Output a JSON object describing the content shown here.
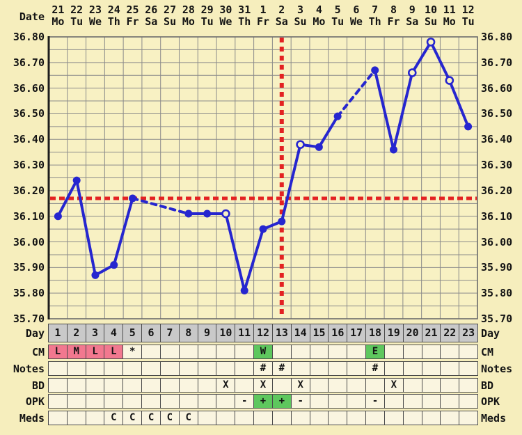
{
  "labels": {
    "date": "Date",
    "day": "Day",
    "cm": "CM",
    "notes": "Notes",
    "bd": "BD",
    "opk": "OPK",
    "meds": "Meds"
  },
  "colors": {
    "background": "#f6eebd",
    "plot_bg": "#f8f1c3",
    "cell_bg": "#faf5e0",
    "day_row_bg": "#c9c9c9",
    "grid": "#8a8a8a",
    "frame": "#6b6b6b",
    "axis": "#1d1d1d",
    "line_blue": "#2626cf",
    "red": "#e32222",
    "pink": "#f2788f",
    "green": "#5ec75e",
    "text": "#141414"
  },
  "chart_data": {
    "type": "line",
    "ylim": [
      35.7,
      36.8
    ],
    "grid_step": 0.05,
    "label_step": 0.1,
    "ytick_labels": [
      "36.80",
      "36.70",
      "36.60",
      "36.50",
      "36.40",
      "36.30",
      "36.20",
      "36.10",
      "36.00",
      "35.90",
      "35.80",
      "35.70"
    ],
    "dates": [
      "21",
      "22",
      "23",
      "24",
      "25",
      "26",
      "27",
      "28",
      "29",
      "30",
      "31",
      "1",
      "2",
      "3",
      "4",
      "5",
      "6",
      "7",
      "8",
      "9",
      "10",
      "11",
      "12"
    ],
    "weekdays": [
      "Mo",
      "Tu",
      "We",
      "Th",
      "Fr",
      "Sa",
      "Su",
      "Mo",
      "Tu",
      "We",
      "Th",
      "Fr",
      "Sa",
      "Su",
      "Mo",
      "Tu",
      "We",
      "Th",
      "Fr",
      "Sa",
      "Su",
      "Mo",
      "Tu"
    ],
    "day_numbers": [
      "1",
      "2",
      "3",
      "4",
      "5",
      "6",
      "7",
      "8",
      "9",
      "10",
      "11",
      "12",
      "13",
      "14",
      "15",
      "16",
      "17",
      "18",
      "19",
      "20",
      "21",
      "22",
      "23"
    ],
    "temps": [
      36.1,
      36.24,
      35.87,
      35.91,
      36.17,
      null,
      null,
      36.11,
      36.11,
      36.11,
      35.81,
      36.05,
      36.08,
      36.38,
      36.37,
      36.49,
      null,
      36.67,
      36.36,
      36.66,
      36.78,
      36.63,
      36.45
    ],
    "open_marker_days": [
      10,
      14,
      20,
      21,
      22
    ],
    "missing_days": [
      6,
      7,
      17
    ],
    "coverline_temp": 36.17,
    "ovulation_day": 13,
    "legend": "none",
    "grid": "on"
  },
  "table": {
    "cm": {
      "1": {
        "t": "L",
        "bg": "pink"
      },
      "2": {
        "t": "M",
        "bg": "pink"
      },
      "3": {
        "t": "L",
        "bg": "pink"
      },
      "4": {
        "t": "L",
        "bg": "pink"
      },
      "5": {
        "t": "*"
      },
      "12": {
        "t": "W",
        "bg": "green"
      },
      "18": {
        "t": "E",
        "bg": "green"
      }
    },
    "notes": {
      "12": {
        "t": "#"
      },
      "13": {
        "t": "#"
      },
      "18": {
        "t": "#"
      }
    },
    "bd": {
      "10": {
        "t": "X"
      },
      "12": {
        "t": "X"
      },
      "14": {
        "t": "X"
      },
      "19": {
        "t": "X"
      }
    },
    "opk": {
      "11": {
        "t": "-"
      },
      "12": {
        "t": "+",
        "bg": "green"
      },
      "13": {
        "t": "+",
        "bg": "green"
      },
      "14": {
        "t": "-"
      },
      "18": {
        "t": "-"
      }
    },
    "meds": {
      "4": {
        "t": "C"
      },
      "5": {
        "t": "C"
      },
      "6": {
        "t": "C"
      },
      "7": {
        "t": "C"
      },
      "8": {
        "t": "C"
      }
    }
  }
}
